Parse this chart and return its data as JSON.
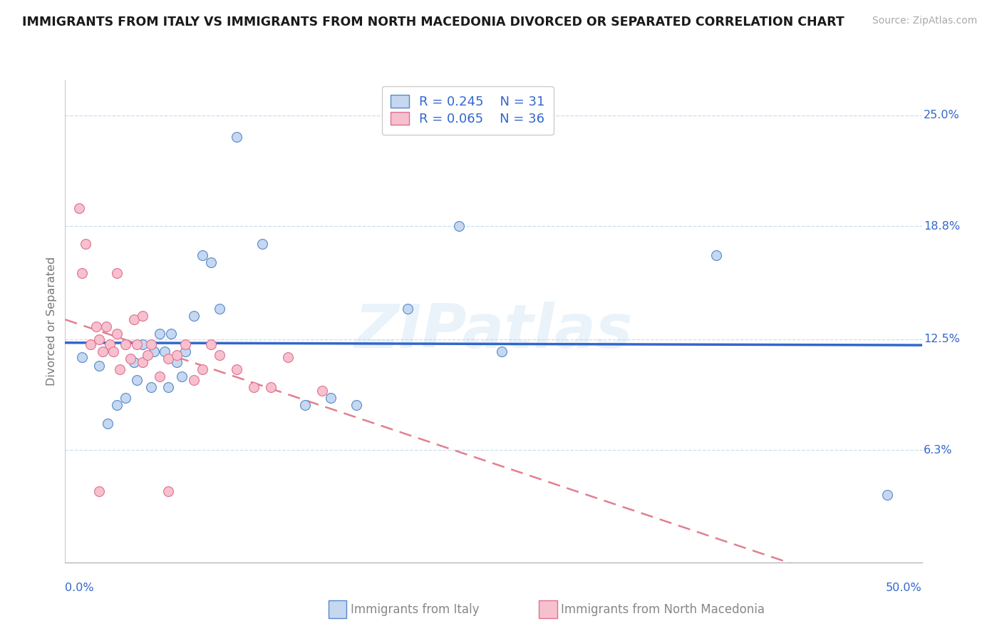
{
  "title": "IMMIGRANTS FROM ITALY VS IMMIGRANTS FROM NORTH MACEDONIA DIVORCED OR SEPARATED CORRELATION CHART",
  "source": "Source: ZipAtlas.com",
  "ylabel": "Divorced or Separated",
  "ytick_labels": [
    "6.3%",
    "12.5%",
    "18.8%",
    "25.0%"
  ],
  "ytick_values": [
    0.063,
    0.125,
    0.188,
    0.25
  ],
  "xlim": [
    0.0,
    0.5
  ],
  "ylim": [
    0.0,
    0.27
  ],
  "legend_italy_R": "0.245",
  "legend_italy_N": "31",
  "legend_mac_R": "0.065",
  "legend_mac_N": "36",
  "italy_color": "#c5d8f0",
  "mac_color": "#f7c0ce",
  "italy_edge_color": "#5588cc",
  "mac_edge_color": "#e07090",
  "italy_line_color": "#3366cc",
  "mac_line_color": "#e08090",
  "label_color": "#3366cc",
  "watermark": "ZIPatlas",
  "background_color": "#ffffff",
  "grid_color": "#c8dff0",
  "italy_scatter_x": [
    0.01,
    0.02,
    0.025,
    0.03,
    0.035,
    0.04,
    0.042,
    0.045,
    0.05,
    0.052,
    0.055,
    0.058,
    0.06,
    0.062,
    0.065,
    0.068,
    0.07,
    0.075,
    0.08,
    0.085,
    0.09,
    0.1,
    0.115,
    0.14,
    0.155,
    0.17,
    0.2,
    0.23,
    0.255,
    0.38,
    0.48
  ],
  "italy_scatter_y": [
    0.115,
    0.11,
    0.078,
    0.088,
    0.092,
    0.112,
    0.102,
    0.122,
    0.098,
    0.118,
    0.128,
    0.118,
    0.098,
    0.128,
    0.112,
    0.104,
    0.118,
    0.138,
    0.172,
    0.168,
    0.142,
    0.238,
    0.178,
    0.088,
    0.092,
    0.088,
    0.142,
    0.188,
    0.118,
    0.172,
    0.038
  ],
  "mac_scatter_x": [
    0.008,
    0.01,
    0.012,
    0.015,
    0.018,
    0.02,
    0.022,
    0.024,
    0.026,
    0.028,
    0.03,
    0.032,
    0.035,
    0.038,
    0.04,
    0.042,
    0.045,
    0.048,
    0.05,
    0.055,
    0.06,
    0.065,
    0.07,
    0.075,
    0.08,
    0.085,
    0.09,
    0.1,
    0.11,
    0.12,
    0.13,
    0.15,
    0.02,
    0.03,
    0.045,
    0.06
  ],
  "mac_scatter_y": [
    0.198,
    0.162,
    0.178,
    0.122,
    0.132,
    0.125,
    0.118,
    0.132,
    0.122,
    0.118,
    0.128,
    0.108,
    0.122,
    0.114,
    0.136,
    0.122,
    0.112,
    0.116,
    0.122,
    0.104,
    0.114,
    0.116,
    0.122,
    0.102,
    0.108,
    0.122,
    0.116,
    0.108,
    0.098,
    0.098,
    0.115,
    0.096,
    0.04,
    0.162,
    0.138,
    0.04
  ]
}
